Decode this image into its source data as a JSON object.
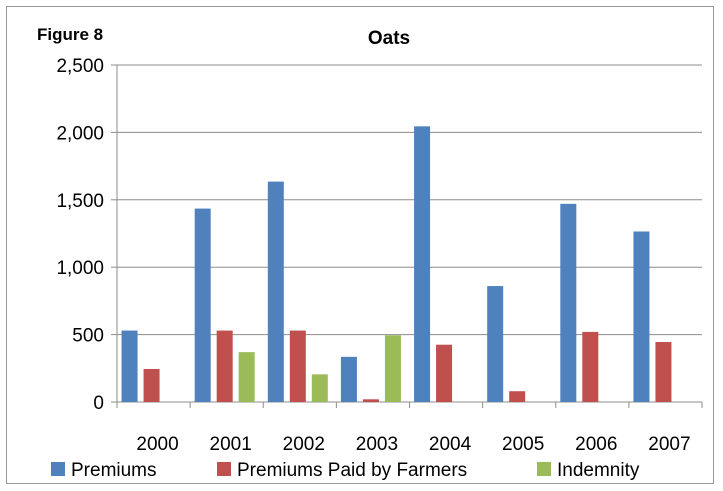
{
  "figure_label": "Figure 8",
  "chart_data": {
    "type": "bar",
    "title": "Oats",
    "xlabel": "",
    "ylabel": "",
    "categories": [
      "2000",
      "2001",
      "2002",
      "2003",
      "2004",
      "2005",
      "2006",
      "2007"
    ],
    "series": [
      {
        "name": "Premiums",
        "color": "#4f81bd",
        "values": [
          530,
          1435,
          1635,
          335,
          2045,
          860,
          1470,
          1265
        ]
      },
      {
        "name": "Premiums Paid by Farmers",
        "color": "#c0504d",
        "values": [
          245,
          530,
          530,
          20,
          425,
          80,
          520,
          445
        ]
      },
      {
        "name": "Indemnity",
        "color": "#9bbb59",
        "values": [
          0,
          370,
          205,
          495,
          0,
          0,
          0,
          0
        ]
      }
    ],
    "ylim": [
      0,
      2500
    ],
    "y_ticks": [
      0,
      500,
      1000,
      1500,
      2000,
      2500
    ],
    "y_tick_labels": [
      "0",
      "500",
      "1,000",
      "1,500",
      "2,000",
      "2,500"
    ],
    "grid": "horizontal",
    "legend": "bottom"
  }
}
